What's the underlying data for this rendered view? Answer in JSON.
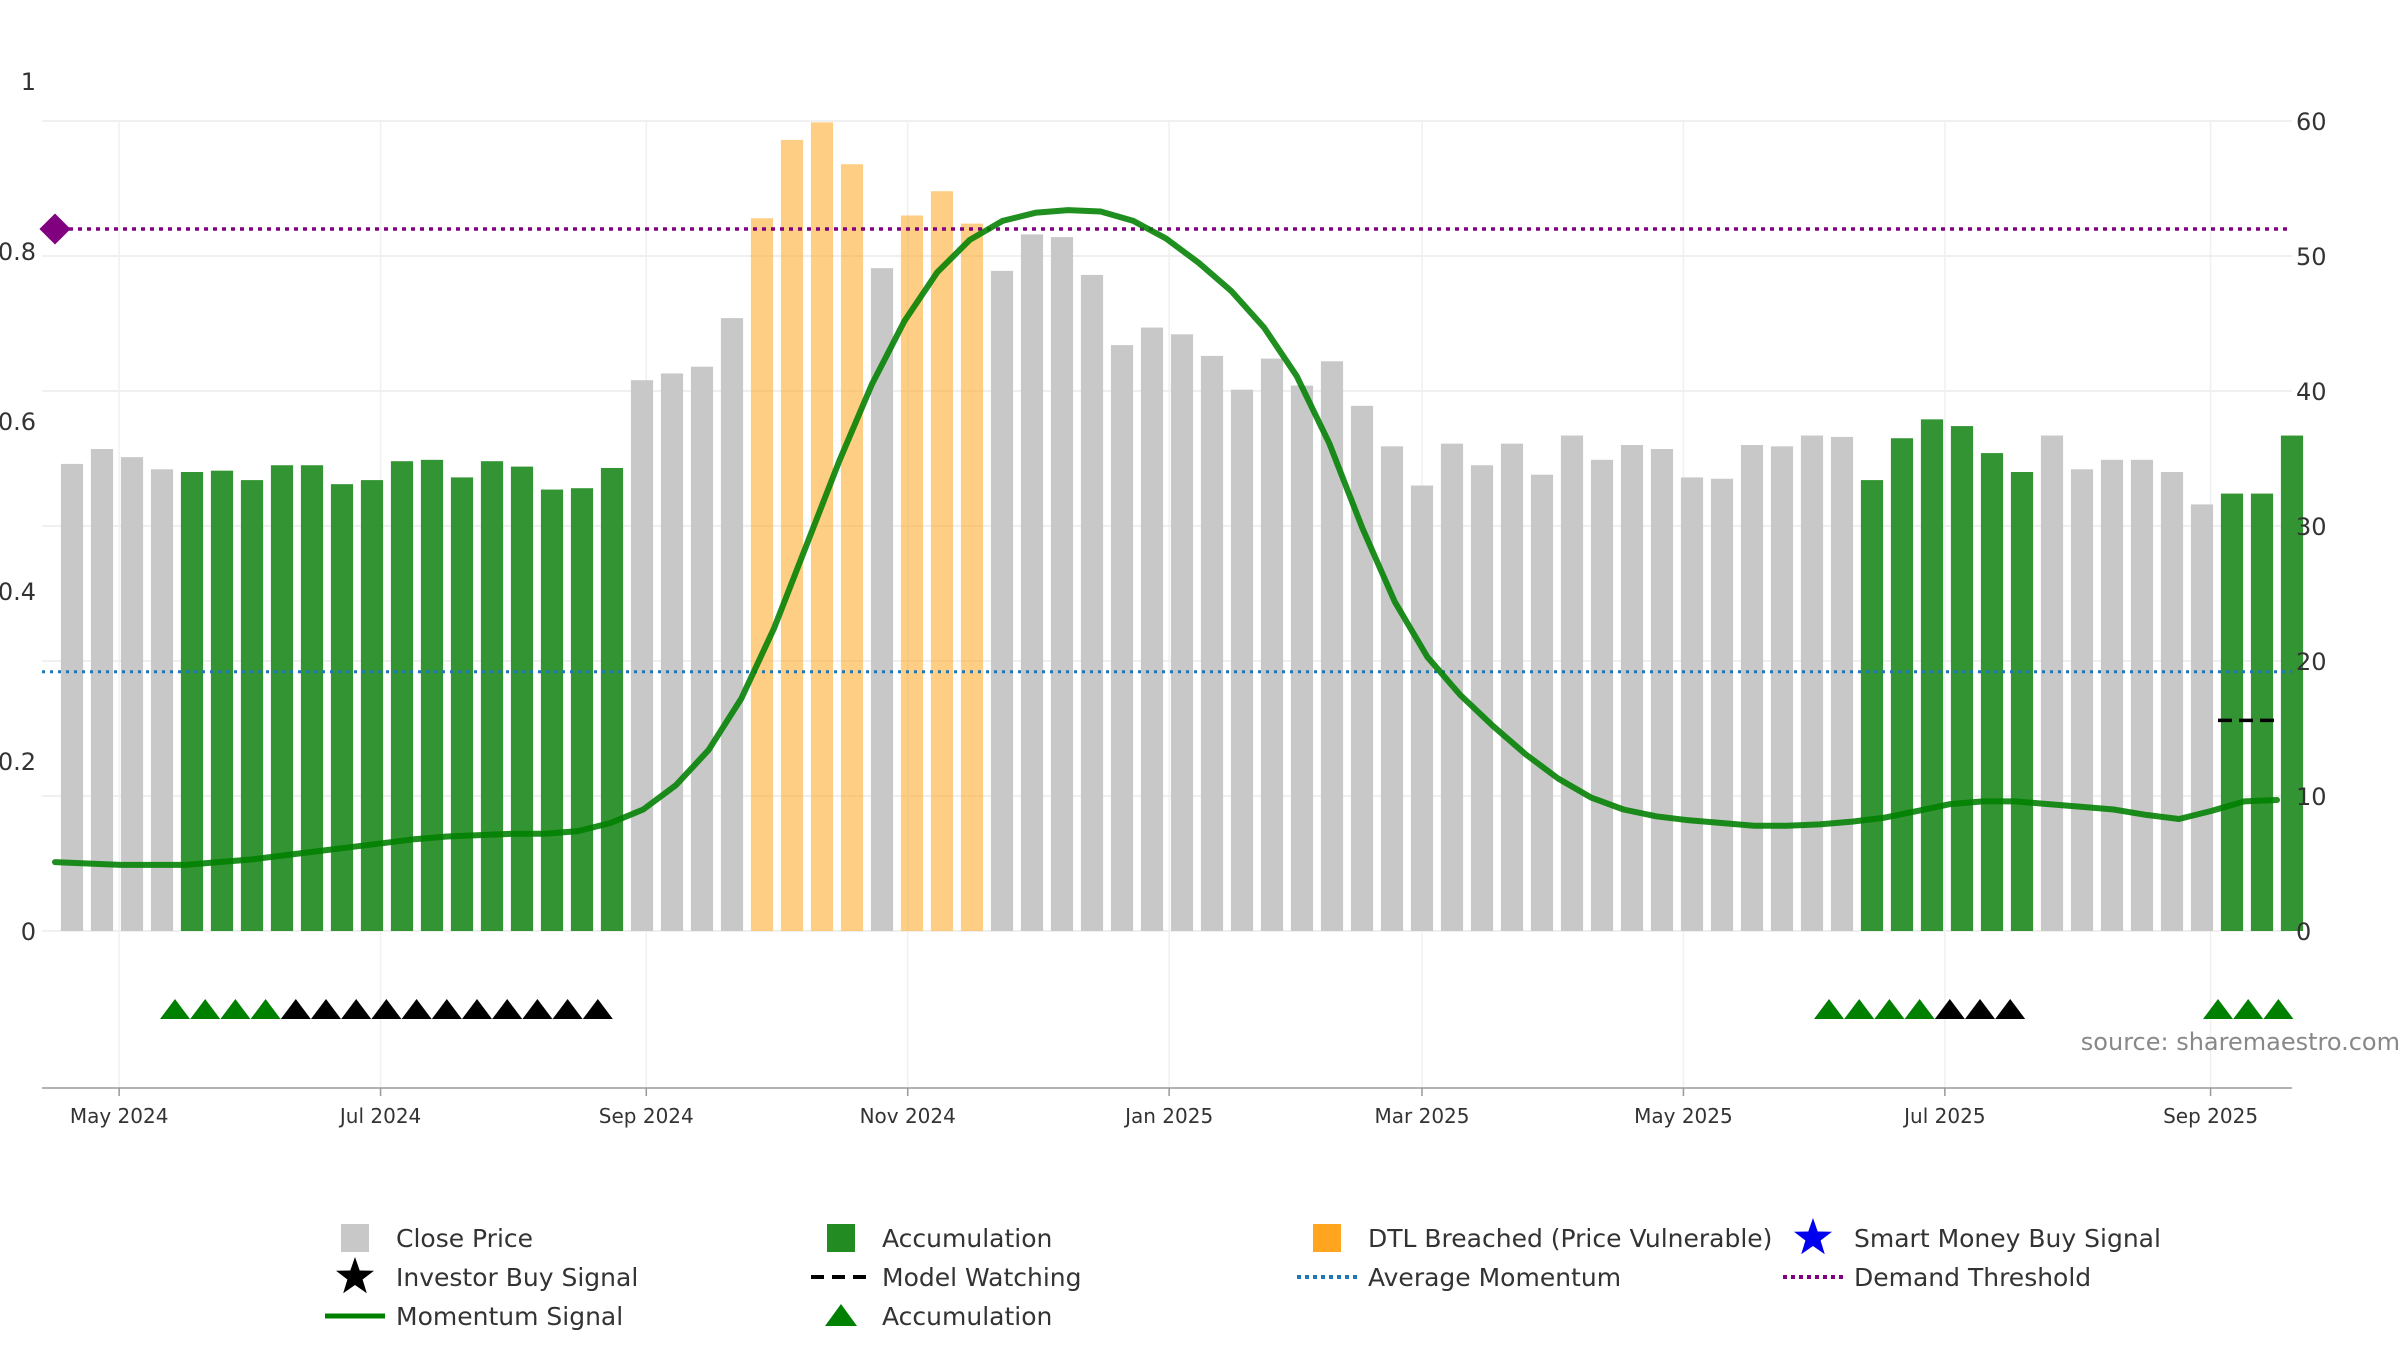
{
  "chart_data": {
    "type": "bar",
    "left_axis": {
      "ylim": [
        0,
        1
      ],
      "ticks": [
        0,
        0.2,
        0.4,
        0.6,
        0.8,
        1
      ],
      "tick_labels": [
        "0",
        "0.2",
        "0.4",
        "0.6",
        "0.8",
        "1"
      ]
    },
    "right_axis": {
      "ylim": [
        0,
        60
      ],
      "ticks": [
        0,
        10,
        20,
        30,
        40,
        50,
        60
      ],
      "tick_labels": [
        "0",
        "10",
        "20",
        "30",
        "40",
        "50",
        "60"
      ]
    },
    "x_axis": {
      "start": "2024-04-13",
      "end": "2025-09-20",
      "ticks": [
        {
          "date": "2024-05-01",
          "label": "May 2024"
        },
        {
          "date": "2024-07-01",
          "label": "Jul 2024"
        },
        {
          "date": "2024-09-01",
          "label": "Sep 2024"
        },
        {
          "date": "2024-11-01",
          "label": "Nov 2024"
        },
        {
          "date": "2025-01-01",
          "label": "Jan 2025"
        },
        {
          "date": "2025-03-01",
          "label": "Mar 2025"
        },
        {
          "date": "2025-05-01",
          "label": "May 2025"
        },
        {
          "date": "2025-07-01",
          "label": "Jul 2025"
        },
        {
          "date": "2025-09-01",
          "label": "Sep 2025"
        }
      ]
    },
    "grid": true,
    "colors": {
      "close_price": "#c8c8c8",
      "accumulation": "#228b22",
      "dtl_breached": "#ffa520",
      "momentum": "#008000",
      "average_momentum": "#1f77b4",
      "demand_threshold": "#800080",
      "investor_signal": "#000000",
      "smart_money": "#0000ee"
    },
    "bars": {
      "week_start": "2024-04-20",
      "close_price": [
        34.6,
        35.7,
        35.1,
        34.2,
        34.0,
        34.1,
        33.4,
        34.5,
        34.5,
        33.1,
        33.4,
        34.8,
        34.9,
        33.6,
        34.8,
        34.4,
        32.7,
        32.8,
        34.3,
        40.8,
        41.3,
        41.8,
        45.4,
        52.8,
        58.6,
        59.9,
        56.8,
        49.1,
        53.0,
        54.8,
        52.4,
        48.9,
        51.6,
        51.4,
        48.6,
        43.4,
        44.7,
        44.2,
        42.6,
        40.1,
        42.4,
        40.4,
        42.2,
        38.9,
        35.9,
        33.0,
        36.1,
        34.5,
        36.1,
        33.8,
        36.7,
        34.9,
        36.0,
        35.7,
        33.6,
        33.5,
        36.0,
        35.9,
        36.7,
        36.6,
        33.4,
        36.5,
        37.9,
        37.4,
        35.4,
        34.0,
        36.7,
        34.2,
        34.9,
        34.9,
        34.0,
        31.6,
        32.4,
        32.4,
        36.7
      ],
      "state": [
        "c",
        "c",
        "c",
        "c",
        "a",
        "a",
        "a",
        "a",
        "a",
        "a",
        "a",
        "a",
        "a",
        "a",
        "a",
        "a",
        "a",
        "a",
        "a",
        "c",
        "c",
        "c",
        "c",
        "d",
        "d",
        "d",
        "d",
        "c",
        "d",
        "d",
        "d",
        "c",
        "c",
        "c",
        "c",
        "c",
        "c",
        "c",
        "c",
        "c",
        "c",
        "c",
        "c",
        "c",
        "c",
        "c",
        "c",
        "c",
        "c",
        "c",
        "c",
        "c",
        "c",
        "c",
        "c",
        "c",
        "c",
        "c",
        "c",
        "c",
        "a",
        "a",
        "a",
        "a",
        "a",
        "a",
        "c",
        "c",
        "c",
        "c",
        "c",
        "c",
        "a",
        "a",
        "a"
      ]
    },
    "momentum_signal": [
      5.1,
      5.0,
      4.9,
      4.9,
      4.9,
      5.1,
      5.3,
      5.6,
      5.9,
      6.2,
      6.5,
      6.8,
      7.0,
      7.1,
      7.2,
      7.2,
      7.4,
      8.0,
      9.0,
      10.8,
      13.4,
      17.2,
      22.4,
      28.6,
      34.8,
      40.5,
      45.2,
      48.8,
      51.2,
      52.6,
      53.2,
      53.4,
      53.3,
      52.6,
      51.3,
      49.5,
      47.4,
      44.7,
      41.1,
      36.1,
      29.9,
      24.4,
      20.3,
      17.5,
      15.2,
      13.1,
      11.3,
      9.9,
      9.0,
      8.5,
      8.2,
      8.0,
      7.8,
      7.8,
      7.9,
      8.1,
      8.4,
      8.9,
      9.4,
      9.6,
      9.6,
      9.4,
      9.2,
      9.0,
      8.6,
      8.3,
      8.9,
      9.6,
      9.7
    ],
    "average_momentum": 19.2,
    "demand_threshold": 52.0,
    "model_watching_level": 15.6,
    "signal_markers": [
      "a",
      "a",
      "a",
      "a",
      "i",
      "i",
      "i",
      "i",
      "i",
      "i",
      "i",
      "i",
      "i",
      "i",
      "i",
      "a",
      "a",
      "a",
      "a",
      "i",
      "i",
      "i",
      "a",
      "a",
      "a"
    ],
    "series": [
      {
        "name": "Close Price"
      },
      {
        "name": "Accumulation"
      },
      {
        "name": "DTL Breached (Price Vulnerable)"
      },
      {
        "name": "Smart Money Buy Signal"
      },
      {
        "name": "Investor Buy Signal"
      },
      {
        "name": "Model Watching"
      },
      {
        "name": "Average Momentum"
      },
      {
        "name": "Demand Threshold"
      },
      {
        "name": "Momentum Signal"
      },
      {
        "name": "Accumulation"
      }
    ],
    "annotation": "source: sharemaestro.com"
  }
}
